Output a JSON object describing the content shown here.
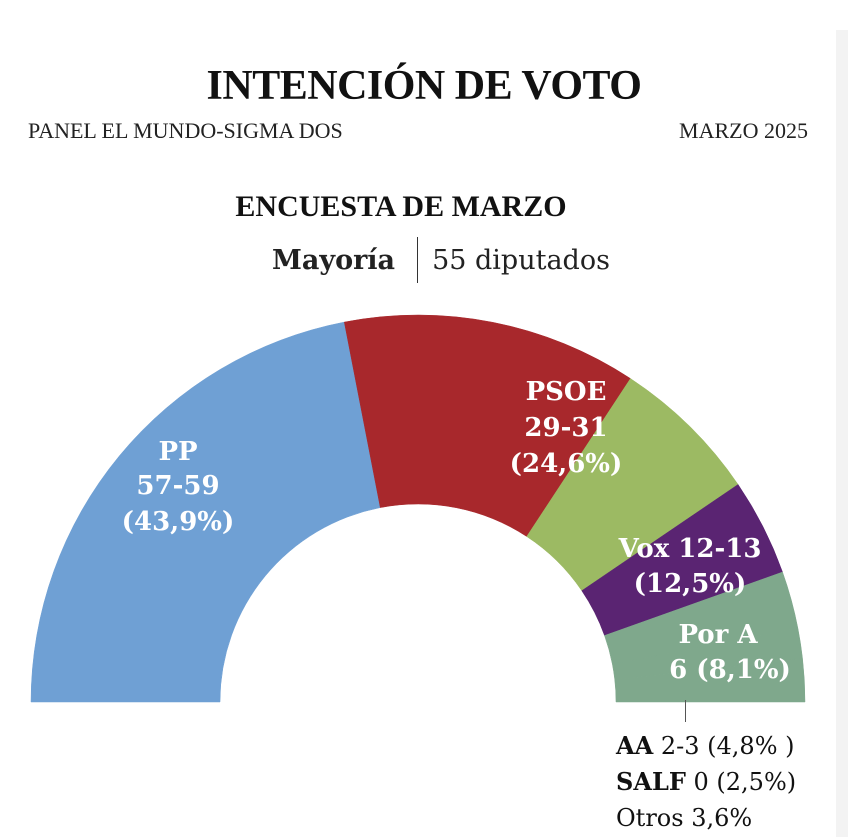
{
  "header": {
    "title": "INTENCIÓN DE VOTO",
    "source": "PANEL EL MUNDO-SIGMA DOS",
    "date": "MARZO 2025"
  },
  "chart_data": {
    "type": "pie",
    "subtitle": "ENCUESTA DE MARZO",
    "majority_label": "Mayoría",
    "majority_value": "55 diputados",
    "slices": [
      {
        "name": "PP",
        "seats": "57-59",
        "pct": "(43,9%)",
        "value": 43.9,
        "color": "#6fa0d4"
      },
      {
        "name": "PSOE",
        "seats": "29-31",
        "pct": "(24,6%)",
        "value": 24.6,
        "color": "#a8282c"
      },
      {
        "name": "Vox",
        "seats": "12-13",
        "pct": "(12,5%)",
        "value": 12.5,
        "color": "#9cba63"
      },
      {
        "name": "Por A",
        "seats": "6",
        "pct": "(8,1%)",
        "value": 8.1,
        "color": "#5a2472"
      },
      {
        "name": "AA",
        "seats": "2-3",
        "pct": "(4,8%)",
        "value": 4.8,
        "color": "#7fa88c"
      },
      {
        "name": "SALF",
        "seats": "0",
        "pct": "(2,5%)",
        "value": 2.5,
        "color": "#7fa88c"
      },
      {
        "name": "Otros",
        "seats": "",
        "pct": "3,6%",
        "value": 3.6,
        "color": "#7fa88c"
      }
    ],
    "small_legend": [
      {
        "name": "AA",
        "text": "2-3 (4,8% )"
      },
      {
        "name": "SALF",
        "text": "0 (2,5%)"
      },
      {
        "name": "Otros",
        "text": "Otros 3,6%"
      }
    ]
  }
}
